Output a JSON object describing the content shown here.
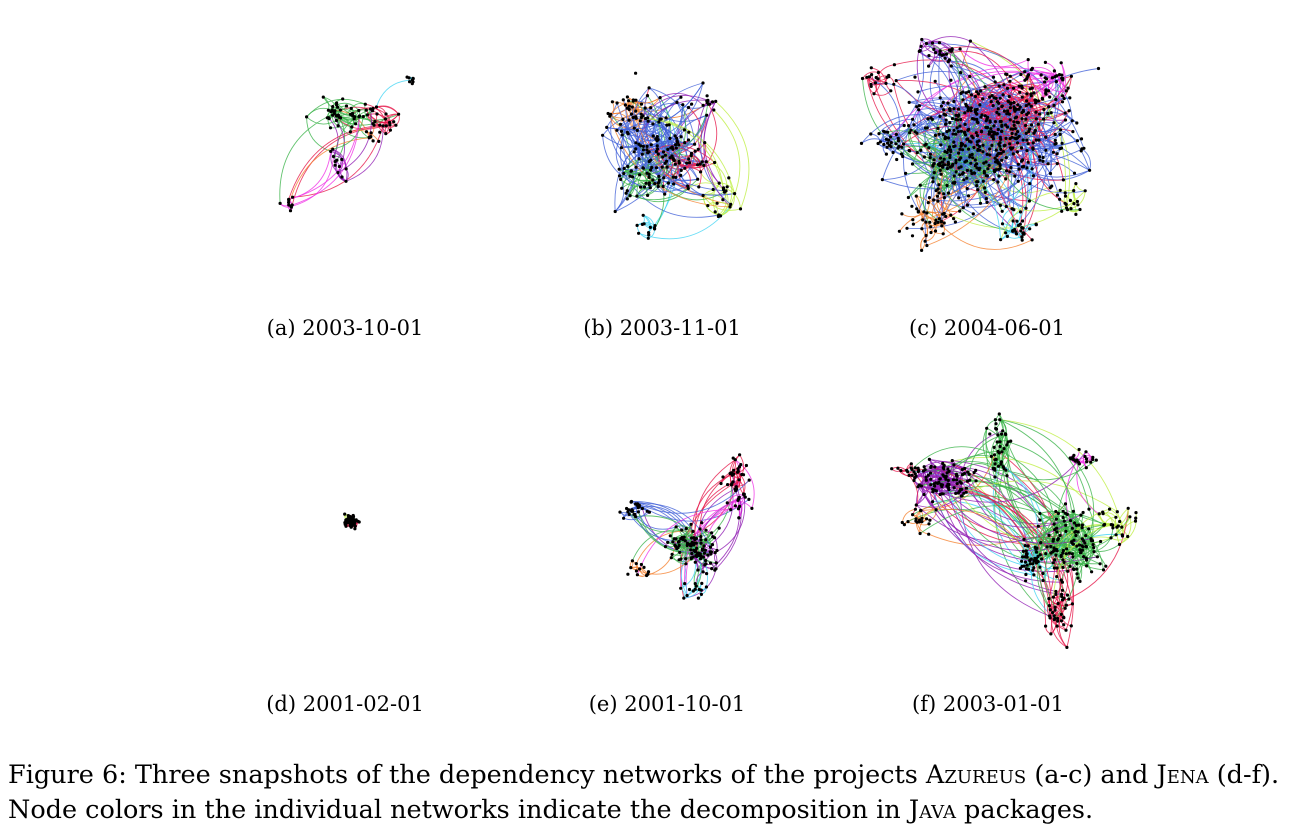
{
  "figure": {
    "subcaptions": [
      {
        "label": "(a)",
        "date": "2003-10-01"
      },
      {
        "label": "(b)",
        "date": "2003-11-01"
      },
      {
        "label": "(c)",
        "date": "2004-06-01"
      },
      {
        "label": "(d)",
        "date": "2001-02-01"
      },
      {
        "label": "(e)",
        "date": "2001-10-01"
      },
      {
        "label": "(f)",
        "date": "2003-01-01"
      }
    ],
    "caption": {
      "prefix": "Figure 6: Three snapshots of the dependency networks of the projects ",
      "project1": "Azureus",
      "range1": " (a-c) and ",
      "project2": "Jena",
      "range2": " (d-f).",
      "line2_start": "Node colors in the individual networks indicate the decomposition in ",
      "lang": "Java",
      "line2_end": " packages."
    },
    "palette": [
      "#e6194b",
      "#3cb44b",
      "#4363d8",
      "#f58231",
      "#911eb4",
      "#42d4f4",
      "#f032e6",
      "#bfef45",
      "#9a6324",
      "#469990",
      "#dc143c",
      "#228b22",
      "#1e90ff",
      "#ff8c00",
      "#8a2be2"
    ]
  }
}
